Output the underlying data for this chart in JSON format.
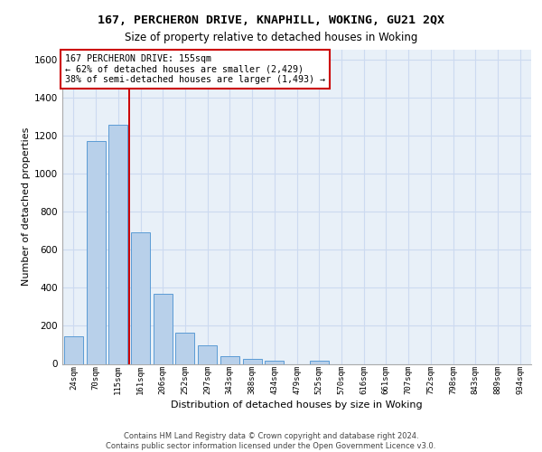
{
  "title_line1": "167, PERCHERON DRIVE, KNAPHILL, WOKING, GU21 2QX",
  "title_line2": "Size of property relative to detached houses in Woking",
  "xlabel": "Distribution of detached houses by size in Woking",
  "ylabel": "Number of detached properties",
  "footer_line1": "Contains HM Land Registry data © Crown copyright and database right 2024.",
  "footer_line2": "Contains public sector information licensed under the Open Government Licence v3.0.",
  "categories": [
    "24sqm",
    "70sqm",
    "115sqm",
    "161sqm",
    "206sqm",
    "252sqm",
    "297sqm",
    "343sqm",
    "388sqm",
    "434sqm",
    "479sqm",
    "525sqm",
    "570sqm",
    "616sqm",
    "661sqm",
    "707sqm",
    "752sqm",
    "798sqm",
    "843sqm",
    "889sqm",
    "934sqm"
  ],
  "values": [
    145,
    1170,
    1255,
    690,
    370,
    165,
    95,
    38,
    28,
    18,
    0,
    18,
    0,
    0,
    0,
    0,
    0,
    0,
    0,
    0,
    0
  ],
  "bar_color": "#b8d0ea",
  "bar_edge_color": "#5b9bd5",
  "grid_color": "#ccdaf0",
  "background_color": "#e8f0f8",
  "vline_color": "#cc0000",
  "vline_pos": 2.5,
  "annotation_text": "167 PERCHERON DRIVE: 155sqm\n← 62% of detached houses are smaller (2,429)\n38% of semi-detached houses are larger (1,493) →",
  "annotation_box_facecolor": "white",
  "annotation_box_edgecolor": "#cc0000",
  "ylim": [
    0,
    1650
  ],
  "yticks": [
    0,
    200,
    400,
    600,
    800,
    1000,
    1200,
    1400,
    1600
  ]
}
